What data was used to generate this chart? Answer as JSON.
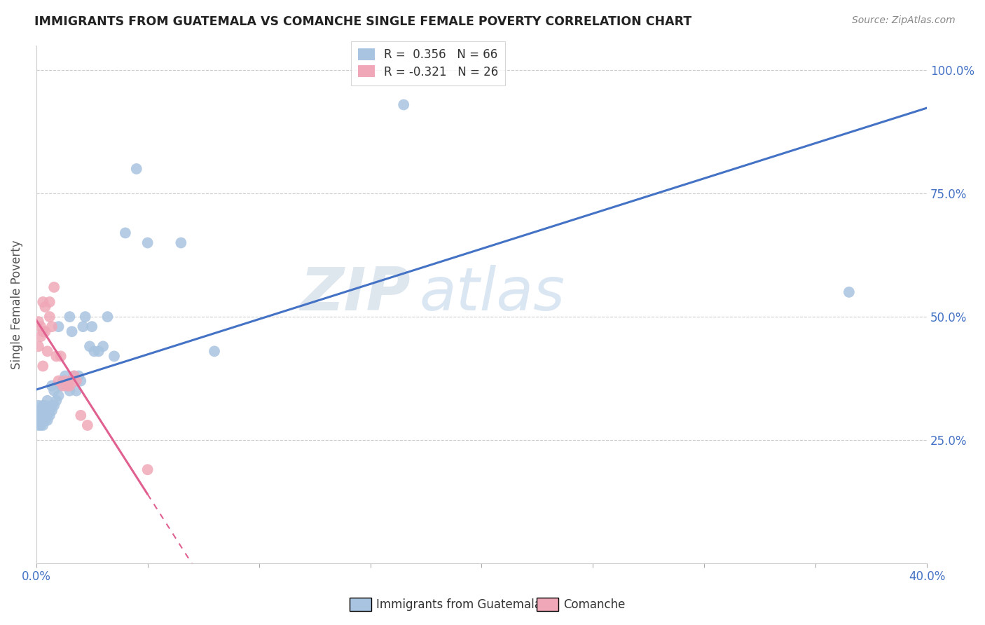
{
  "title": "IMMIGRANTS FROM GUATEMALA VS COMANCHE SINGLE FEMALE POVERTY CORRELATION CHART",
  "source": "Source: ZipAtlas.com",
  "ylabel": "Single Female Poverty",
  "yticks": [
    0.25,
    0.5,
    0.75,
    1.0
  ],
  "ytick_labels": [
    "25.0%",
    "50.0%",
    "75.0%",
    "100.0%"
  ],
  "legend_label1": "Immigrants from Guatemala",
  "legend_label2": "Comanche",
  "R1": 0.356,
  "N1": 66,
  "R2": -0.321,
  "N2": 26,
  "color_blue": "#a8c4e0",
  "color_pink": "#f0a8b8",
  "line_blue": "#4472c4",
  "line_pink": "#e06090",
  "watermark_zip": "ZIP",
  "watermark_atlas": "atlas",
  "xlim": [
    0.0,
    0.4
  ],
  "ylim": [
    0.0,
    1.05
  ],
  "guatemala_x": [
    0.001,
    0.001,
    0.001,
    0.001,
    0.001,
    0.001,
    0.001,
    0.002,
    0.002,
    0.002,
    0.002,
    0.002,
    0.002,
    0.002,
    0.003,
    0.003,
    0.003,
    0.003,
    0.003,
    0.003,
    0.004,
    0.004,
    0.004,
    0.004,
    0.004,
    0.005,
    0.005,
    0.005,
    0.005,
    0.006,
    0.006,
    0.007,
    0.007,
    0.007,
    0.008,
    0.008,
    0.009,
    0.01,
    0.01,
    0.011,
    0.012,
    0.013,
    0.014,
    0.015,
    0.015,
    0.016,
    0.017,
    0.018,
    0.019,
    0.02,
    0.021,
    0.022,
    0.024,
    0.025,
    0.026,
    0.028,
    0.03,
    0.032,
    0.035,
    0.04,
    0.045,
    0.05,
    0.065,
    0.08,
    0.165,
    0.365
  ],
  "guatemala_y": [
    0.28,
    0.29,
    0.29,
    0.3,
    0.31,
    0.31,
    0.32,
    0.28,
    0.29,
    0.29,
    0.3,
    0.3,
    0.31,
    0.31,
    0.28,
    0.29,
    0.3,
    0.3,
    0.31,
    0.32,
    0.29,
    0.3,
    0.3,
    0.31,
    0.32,
    0.29,
    0.3,
    0.31,
    0.33,
    0.3,
    0.31,
    0.31,
    0.32,
    0.36,
    0.32,
    0.35,
    0.33,
    0.34,
    0.48,
    0.36,
    0.37,
    0.38,
    0.36,
    0.35,
    0.5,
    0.47,
    0.38,
    0.35,
    0.38,
    0.37,
    0.48,
    0.5,
    0.44,
    0.48,
    0.43,
    0.43,
    0.44,
    0.5,
    0.42,
    0.67,
    0.8,
    0.65,
    0.65,
    0.43,
    0.93,
    0.55
  ],
  "comanche_x": [
    0.001,
    0.001,
    0.002,
    0.002,
    0.003,
    0.003,
    0.003,
    0.004,
    0.004,
    0.005,
    0.006,
    0.006,
    0.007,
    0.008,
    0.009,
    0.01,
    0.011,
    0.012,
    0.013,
    0.014,
    0.015,
    0.017,
    0.018,
    0.02,
    0.023,
    0.05
  ],
  "comanche_y": [
    0.44,
    0.49,
    0.46,
    0.48,
    0.4,
    0.47,
    0.53,
    0.47,
    0.52,
    0.43,
    0.5,
    0.53,
    0.48,
    0.56,
    0.42,
    0.37,
    0.42,
    0.36,
    0.37,
    0.36,
    0.36,
    0.38,
    0.37,
    0.3,
    0.28,
    0.19
  ]
}
